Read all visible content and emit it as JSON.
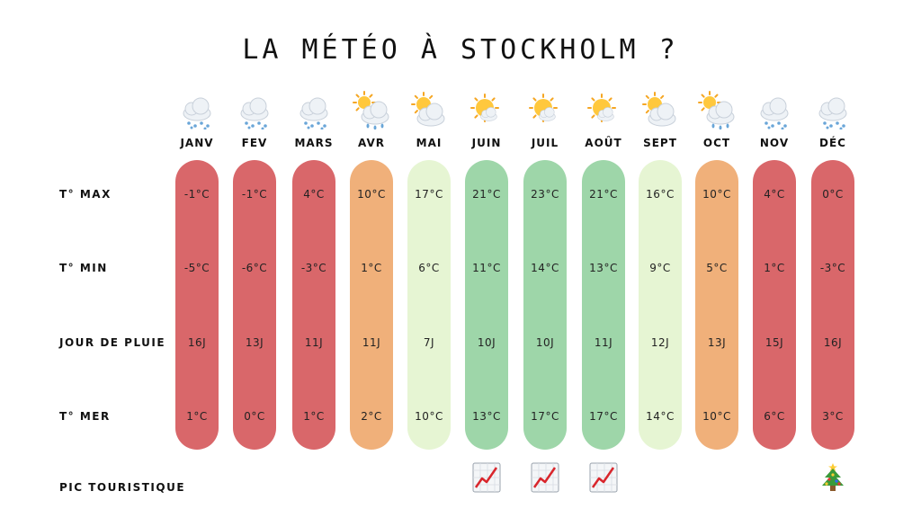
{
  "title": "LA MÉTÉO À STOCKHOLM ?",
  "row_labels": {
    "tmax": "T° MAX",
    "tmin": "T° MIN",
    "rain": "JOUR DE PLUIE",
    "sea": "T° MER",
    "peak": "PIC TOURISTIQUE"
  },
  "colors": {
    "red": "#d9676a",
    "orange": "#f0b07a",
    "lightgreen": "#e6f5d3",
    "green": "#9ed6a9"
  },
  "months": [
    {
      "name": "JANV",
      "icon": "snow-cloud-icon",
      "color": "red",
      "tmax": "-1°C",
      "tmin": "-5°C",
      "rain": "16J",
      "sea": "1°C",
      "peak": ""
    },
    {
      "name": "FEV",
      "icon": "snow-cloud-icon",
      "color": "red",
      "tmax": "-1°C",
      "tmin": "-6°C",
      "rain": "13J",
      "sea": "0°C",
      "peak": ""
    },
    {
      "name": "MARS",
      "icon": "snow-cloud-icon",
      "color": "red",
      "tmax": "4°C",
      "tmin": "-3°C",
      "rain": "11J",
      "sea": "1°C",
      "peak": ""
    },
    {
      "name": "AVR",
      "icon": "sun-rain-cloud-icon",
      "color": "orange",
      "tmax": "10°C",
      "tmin": "1°C",
      "rain": "11J",
      "sea": "2°C",
      "peak": ""
    },
    {
      "name": "MAI",
      "icon": "sun-behind-cloud-icon",
      "color": "lightgreen",
      "tmax": "17°C",
      "tmin": "6°C",
      "rain": "7J",
      "sea": "10°C",
      "peak": ""
    },
    {
      "name": "JUIN",
      "icon": "sun-small-cloud-icon",
      "color": "green",
      "tmax": "21°C",
      "tmin": "11°C",
      "rain": "10J",
      "sea": "13°C",
      "peak": "chart-increasing-icon"
    },
    {
      "name": "JUIL",
      "icon": "sun-small-cloud-icon",
      "color": "green",
      "tmax": "23°C",
      "tmin": "14°C",
      "rain": "10J",
      "sea": "17°C",
      "peak": "chart-increasing-icon"
    },
    {
      "name": "AOÛT",
      "icon": "sun-small-cloud-icon",
      "color": "green",
      "tmax": "21°C",
      "tmin": "13°C",
      "rain": "11J",
      "sea": "17°C",
      "peak": "chart-increasing-icon"
    },
    {
      "name": "SEPT",
      "icon": "sun-behind-cloud-icon",
      "color": "lightgreen",
      "tmax": "16°C",
      "tmin": "9°C",
      "rain": "12J",
      "sea": "14°C",
      "peak": ""
    },
    {
      "name": "OCT",
      "icon": "sun-rain-cloud-icon",
      "color": "orange",
      "tmax": "10°C",
      "tmin": "5°C",
      "rain": "13J",
      "sea": "10°C",
      "peak": ""
    },
    {
      "name": "NOV",
      "icon": "snow-cloud-icon",
      "color": "red",
      "tmax": "4°C",
      "tmin": "1°C",
      "rain": "15J",
      "sea": "6°C",
      "peak": ""
    },
    {
      "name": "DÉC",
      "icon": "snow-cloud-icon",
      "color": "red",
      "tmax": "0°C",
      "tmin": "-3°C",
      "rain": "16J",
      "sea": "3°C",
      "peak": "christmas-tree-icon"
    }
  ]
}
